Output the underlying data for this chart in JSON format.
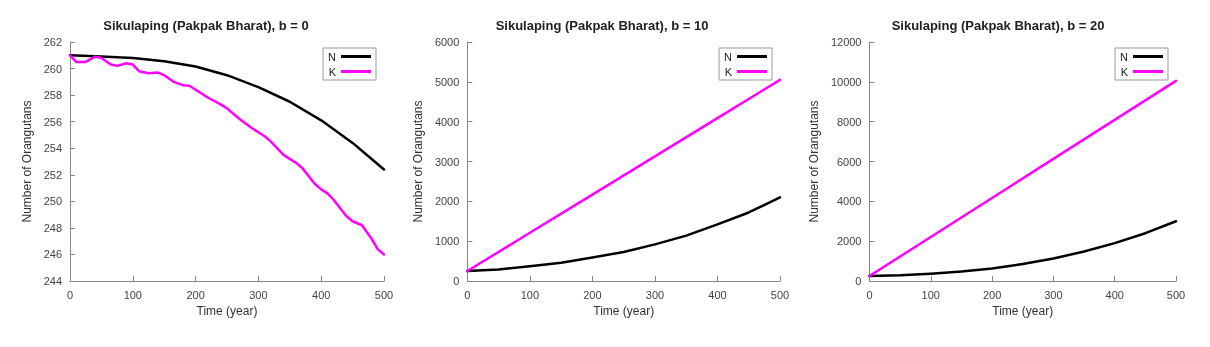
{
  "chart_data": [
    {
      "type": "line",
      "title": "Sikulaping (Pakpak Bharat), b = 0",
      "xlabel": "Time (year)",
      "ylabel": "Number of Orangutans",
      "xlim": [
        0,
        500
      ],
      "xticks": [
        0,
        100,
        200,
        300,
        400,
        500
      ],
      "ylim": [
        244,
        262
      ],
      "yticks": [
        244,
        246,
        248,
        250,
        252,
        254,
        256,
        258,
        260,
        262
      ],
      "legend": "top right",
      "grid": false,
      "marker": "none",
      "line_style": "solid",
      "series": [
        {
          "name": "N",
          "color": "#000000",
          "x": [
            0,
            50,
            100,
            150,
            200,
            250,
            300,
            350,
            400,
            450,
            500
          ],
          "values": [
            261,
            260.9,
            260.8,
            260.55,
            260.15,
            259.5,
            258.6,
            257.5,
            256.1,
            254.4,
            252.4
          ]
        },
        {
          "name": "K",
          "color": "#ff00ff",
          "x": [
            0,
            10,
            25,
            40,
            50,
            65,
            75,
            90,
            100,
            110,
            125,
            140,
            150,
            165,
            180,
            190,
            200,
            220,
            240,
            250,
            270,
            290,
            300,
            310,
            320,
            340,
            360,
            370,
            390,
            400,
            410,
            420,
            440,
            450,
            465,
            480,
            490,
            500
          ],
          "values": [
            261,
            260.5,
            260.5,
            260.9,
            260.8,
            260.3,
            260.2,
            260.4,
            260.3,
            259.8,
            259.65,
            259.7,
            259.5,
            259,
            258.75,
            258.7,
            258.4,
            257.8,
            257.3,
            257,
            256.2,
            255.5,
            255.2,
            254.9,
            254.5,
            253.5,
            252.9,
            252.5,
            251.3,
            250.9,
            250.6,
            250.1,
            248.9,
            248.5,
            248.2,
            247.2,
            246.4,
            246
          ]
        }
      ]
    },
    {
      "type": "line",
      "title": "Sikulaping (Pakpak Bharat), b = 10",
      "xlabel": "Time (year)",
      "ylabel": "Number of Orangutans",
      "xlim": [
        0,
        500
      ],
      "xticks": [
        0,
        100,
        200,
        300,
        400,
        500
      ],
      "ylim": [
        0,
        6000
      ],
      "yticks": [
        0,
        1000,
        2000,
        3000,
        4000,
        5000,
        6000
      ],
      "legend": "top right",
      "grid": false,
      "marker": "none",
      "line_style": "solid",
      "series": [
        {
          "name": "N",
          "color": "#000000",
          "x": [
            0,
            50,
            100,
            150,
            200,
            250,
            300,
            350,
            400,
            450,
            500
          ],
          "values": [
            250,
            290,
            370,
            460,
            590,
            730,
            920,
            1140,
            1420,
            1720,
            2100
          ]
        },
        {
          "name": "K",
          "color": "#ff00ff",
          "x": [
            0,
            100,
            200,
            300,
            400,
            500
          ],
          "values": [
            250,
            1210,
            2170,
            3130,
            4090,
            5050
          ]
        }
      ]
    },
    {
      "type": "line",
      "title": "Sikulaping (Pakpak Bharat), b = 20",
      "xlabel": "Time (year)",
      "ylabel": "Number of Orangutans",
      "xlim": [
        0,
        500
      ],
      "xticks": [
        0,
        100,
        200,
        300,
        400,
        500
      ],
      "ylim": [
        0,
        12000
      ],
      "yticks": [
        0,
        2000,
        4000,
        6000,
        8000,
        10000,
        12000
      ],
      "legend": "top right",
      "grid": false,
      "marker": "none",
      "line_style": "solid",
      "series": [
        {
          "name": "N",
          "color": "#000000",
          "x": [
            0,
            50,
            100,
            150,
            200,
            250,
            300,
            350,
            400,
            450,
            500
          ],
          "values": [
            250,
            290,
            370,
            480,
            630,
            850,
            1130,
            1480,
            1900,
            2400,
            3000
          ]
        },
        {
          "name": "K",
          "color": "#ff00ff",
          "x": [
            0,
            100,
            200,
            300,
            400,
            500
          ],
          "values": [
            250,
            2210,
            4170,
            6130,
            8090,
            10050
          ]
        }
      ]
    }
  ]
}
